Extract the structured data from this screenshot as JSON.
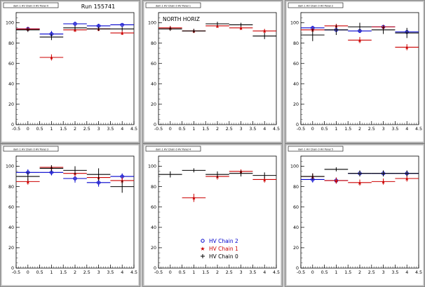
{
  "run_label": "Run 155741",
  "colors": {
    "chain2": "#0000cc",
    "chain1": "#cc0000",
    "chain0": "#000000",
    "frame_bg": "#c8c8c8",
    "pad_bg": "#ffffff"
  },
  "legend": [
    {
      "key": "chain2",
      "label": "HV Chain 2",
      "marker": "circle"
    },
    {
      "key": "chain1",
      "label": "HV Chain 1",
      "marker": "star"
    },
    {
      "key": "chain0",
      "label": "HV Chain 0",
      "marker": "cross"
    }
  ],
  "chart_data": [
    {
      "type": "scatter",
      "title": "",
      "pad_title": "dam 1 HV Chain 0 HV Panel 0",
      "annotation": "Run 155741",
      "x_ticks": [
        -0.5,
        0,
        0.5,
        1,
        1.5,
        2,
        2.5,
        3,
        3.5,
        4,
        4.5
      ],
      "y_ticks": [
        0,
        20,
        40,
        60,
        80,
        100
      ],
      "xlim": [
        -0.5,
        4.5
      ],
      "ylim": [
        0,
        110
      ],
      "grid": false,
      "series": [
        {
          "key": "chain2",
          "x": [
            0,
            1,
            2,
            3,
            4
          ],
          "y": [
            94,
            89,
            99,
            97,
            98
          ],
          "yerr": [
            2,
            3,
            2,
            2,
            1
          ]
        },
        {
          "key": "chain1",
          "x": [
            0,
            1,
            2,
            3,
            4
          ],
          "y": [
            94,
            66,
            93,
            94,
            90
          ],
          "yerr": [
            2,
            3,
            2,
            2,
            2
          ]
        },
        {
          "key": "chain0",
          "x": [
            0,
            1,
            2,
            3,
            4
          ],
          "y": [
            93,
            86,
            95,
            94,
            94
          ],
          "yerr": [
            2,
            3,
            2,
            2,
            2
          ]
        }
      ]
    },
    {
      "type": "scatter",
      "title": "",
      "pad_title": "dam 1 HV Chain 0 HV Panel 1",
      "annotation": "NORTH HORIZ",
      "x_ticks": [
        -0.5,
        0,
        0.5,
        1,
        1.5,
        2,
        2.5,
        3,
        3.5,
        4,
        4.5
      ],
      "y_ticks": [
        0,
        20,
        40,
        60,
        80,
        100
      ],
      "xlim": [
        -0.5,
        4.5
      ],
      "ylim": [
        0,
        110
      ],
      "grid": false,
      "series": [
        {
          "key": "chain1",
          "x": [
            0,
            1,
            2,
            3,
            4
          ],
          "y": [
            95,
            92,
            97,
            95,
            92
          ],
          "yerr": [
            2,
            2,
            2,
            2,
            2
          ]
        },
        {
          "key": "chain0",
          "x": [
            0,
            1,
            2,
            3,
            4
          ],
          "y": [
            94,
            92,
            99,
            98,
            87
          ],
          "yerr": [
            2,
            2,
            2,
            2,
            3
          ]
        }
      ]
    },
    {
      "type": "scatter",
      "title": "",
      "pad_title": "dam 1 HV Chain 0 HV Panel 2",
      "annotation": "",
      "x_ticks": [
        -0.5,
        0,
        0.5,
        1,
        1.5,
        2,
        2.5,
        3,
        3.5,
        4,
        4.5
      ],
      "y_ticks": [
        0,
        20,
        40,
        60,
        80,
        100
      ],
      "xlim": [
        -0.5,
        4.5
      ],
      "ylim": [
        0,
        110
      ],
      "grid": false,
      "series": [
        {
          "key": "chain2",
          "x": [
            0,
            1,
            2,
            3,
            4
          ],
          "y": [
            95,
            93,
            92,
            96,
            91
          ],
          "yerr": [
            2,
            2,
            2,
            2,
            2
          ]
        },
        {
          "key": "chain1",
          "x": [
            0,
            1,
            2,
            3,
            4
          ],
          "y": [
            93,
            97,
            83,
            96,
            76
          ],
          "yerr": [
            2,
            2,
            3,
            2,
            3
          ]
        },
        {
          "key": "chain0",
          "x": [
            0,
            1,
            2,
            3,
            4
          ],
          "y": [
            88,
            93,
            96,
            93,
            90
          ],
          "yerr": [
            6,
            5,
            4,
            4,
            5
          ]
        }
      ]
    },
    {
      "type": "scatter",
      "title": "",
      "pad_title": "dam 1 HV Chain 0 HV Panel 3",
      "annotation": "",
      "x_ticks": [
        -0.5,
        0,
        0.5,
        1,
        1.5,
        2,
        2.5,
        3,
        3.5,
        4,
        4.5
      ],
      "y_ticks": [
        0,
        20,
        40,
        60,
        80,
        100
      ],
      "xlim": [
        -0.5,
        4.5
      ],
      "ylim": [
        0,
        110
      ],
      "grid": false,
      "series": [
        {
          "key": "chain2",
          "x": [
            0,
            1,
            2,
            3,
            4
          ],
          "y": [
            94,
            94,
            88,
            84,
            90
          ],
          "yerr": [
            3,
            3,
            4,
            4,
            3
          ]
        },
        {
          "key": "chain1",
          "x": [
            0,
            1,
            2,
            3,
            4
          ],
          "y": [
            85,
            99,
            93,
            89,
            86
          ],
          "yerr": [
            3,
            2,
            3,
            3,
            3
          ]
        },
        {
          "key": "chain0",
          "x": [
            0,
            1,
            2,
            3,
            4
          ],
          "y": [
            90,
            98,
            96,
            92,
            80
          ],
          "yerr": [
            4,
            3,
            4,
            6,
            6
          ]
        }
      ]
    },
    {
      "type": "scatter",
      "title": "",
      "pad_title": "dam 1 HV Chain 0 HV Panel 4",
      "annotation": "",
      "x_ticks": [
        -0.5,
        0,
        0.5,
        1,
        1.5,
        2,
        2.5,
        3,
        3.5,
        4,
        4.5
      ],
      "y_ticks": [
        0,
        20,
        40,
        60,
        80,
        100
      ],
      "xlim": [
        -0.5,
        4.5
      ],
      "ylim": [
        0,
        110
      ],
      "grid": false,
      "series": [
        {
          "key": "chain1",
          "x": [
            1,
            2,
            3,
            4
          ],
          "y": [
            69,
            90,
            95,
            87
          ],
          "yerr": [
            4,
            3,
            2,
            3
          ]
        },
        {
          "key": "chain0",
          "x": [
            0,
            1,
            2,
            3,
            4
          ],
          "y": [
            92,
            96,
            92,
            93,
            91
          ],
          "yerr": [
            3,
            2,
            3,
            3,
            3
          ]
        }
      ]
    },
    {
      "type": "scatter",
      "title": "",
      "pad_title": "dam 1 HV Chain 0 HV Panel 5",
      "annotation": "",
      "x_ticks": [
        -0.5,
        0,
        0.5,
        1,
        1.5,
        2,
        2.5,
        3,
        3.5,
        4,
        4.5
      ],
      "y_ticks": [
        0,
        20,
        40,
        60,
        80,
        100
      ],
      "xlim": [
        -0.5,
        4.5
      ],
      "ylim": [
        0,
        110
      ],
      "grid": false,
      "series": [
        {
          "key": "chain2",
          "x": [
            0,
            1,
            2,
            3,
            4
          ],
          "y": [
            87,
            86,
            93,
            93,
            93
          ],
          "yerr": [
            3,
            3,
            2,
            2,
            2
          ]
        },
        {
          "key": "chain1",
          "x": [
            0,
            1,
            2,
            3,
            4
          ],
          "y": [
            90,
            86,
            84,
            85,
            88
          ],
          "yerr": [
            3,
            3,
            3,
            3,
            3
          ]
        },
        {
          "key": "chain0",
          "x": [
            0,
            1,
            2,
            3,
            4
          ],
          "y": [
            90,
            97,
            93,
            93,
            93
          ],
          "yerr": [
            3,
            2,
            3,
            3,
            3
          ]
        }
      ]
    }
  ]
}
